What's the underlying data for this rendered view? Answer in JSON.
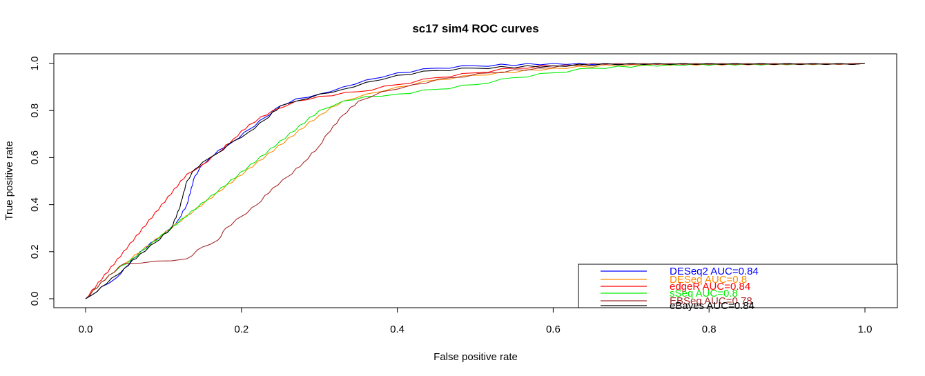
{
  "chart_data": {
    "type": "line",
    "title": "sc17 sim4 ROC curves",
    "xlabel": "False positive rate",
    "ylabel": "True positive rate",
    "xlim": [
      0,
      1
    ],
    "ylim": [
      0,
      1
    ],
    "x_ticks": [
      "0.0",
      "0.2",
      "0.4",
      "0.6",
      "0.8",
      "1.0"
    ],
    "y_ticks": [
      "0.0",
      "0.2",
      "0.4",
      "0.6",
      "0.8",
      "1.0"
    ],
    "grid": false,
    "legend_position": "bottom-right",
    "series": [
      {
        "name": "DESeq2",
        "legend": "DESeq2 AUC=0.84",
        "color": "#0000ff",
        "points": [
          [
            0,
            0
          ],
          [
            0.01,
            0.02
          ],
          [
            0.02,
            0.05
          ],
          [
            0.04,
            0.09
          ],
          [
            0.05,
            0.13
          ],
          [
            0.07,
            0.2
          ],
          [
            0.09,
            0.25
          ],
          [
            0.11,
            0.3
          ],
          [
            0.12,
            0.34
          ],
          [
            0.13,
            0.4
          ],
          [
            0.14,
            0.52
          ],
          [
            0.15,
            0.57
          ],
          [
            0.16,
            0.6
          ],
          [
            0.17,
            0.63
          ],
          [
            0.19,
            0.67
          ],
          [
            0.21,
            0.72
          ],
          [
            0.23,
            0.77
          ],
          [
            0.25,
            0.82
          ],
          [
            0.27,
            0.85
          ],
          [
            0.3,
            0.87
          ],
          [
            0.33,
            0.9
          ],
          [
            0.36,
            0.93
          ],
          [
            0.4,
            0.96
          ],
          [
            0.45,
            0.98
          ],
          [
            0.5,
            0.99
          ],
          [
            0.6,
            1.0
          ],
          [
            1.0,
            1.0
          ]
        ]
      },
      {
        "name": "DESeq",
        "legend": "DESeq AUC=0.8",
        "color": "#ff8c00",
        "points": [
          [
            0,
            0
          ],
          [
            0.03,
            0.1
          ],
          [
            0.05,
            0.15
          ],
          [
            0.3,
            0.78
          ],
          [
            0.33,
            0.84
          ],
          [
            0.36,
            0.87
          ],
          [
            0.4,
            0.9
          ],
          [
            0.45,
            0.93
          ],
          [
            0.5,
            0.95
          ],
          [
            0.6,
            0.98
          ],
          [
            0.7,
            0.995
          ],
          [
            1.0,
            1.0
          ]
        ]
      },
      {
        "name": "edgeR",
        "legend": "edgeR AUC=0.84",
        "color": "#ff0000",
        "points": [
          [
            0,
            0
          ],
          [
            0.13,
            0.53
          ],
          [
            0.15,
            0.57
          ],
          [
            0.17,
            0.62
          ],
          [
            0.19,
            0.68
          ],
          [
            0.21,
            0.74
          ],
          [
            0.24,
            0.8
          ],
          [
            0.27,
            0.84
          ],
          [
            0.3,
            0.86
          ],
          [
            0.35,
            0.88
          ],
          [
            0.4,
            0.91
          ],
          [
            0.45,
            0.94
          ],
          [
            0.5,
            0.96
          ],
          [
            0.55,
            0.98
          ],
          [
            0.6,
            0.99
          ],
          [
            0.7,
            1.0
          ],
          [
            1.0,
            1.0
          ]
        ]
      },
      {
        "name": "sSeq",
        "legend": "sSeq AUC=0.8",
        "color": "#00ee00",
        "points": [
          [
            0,
            0
          ],
          [
            0.03,
            0.1
          ],
          [
            0.06,
            0.17
          ],
          [
            0.3,
            0.8
          ],
          [
            0.33,
            0.84
          ],
          [
            0.36,
            0.86
          ],
          [
            0.4,
            0.87
          ],
          [
            0.45,
            0.89
          ],
          [
            0.5,
            0.91
          ],
          [
            0.55,
            0.94
          ],
          [
            0.6,
            0.96
          ],
          [
            0.65,
            0.98
          ],
          [
            0.75,
            0.995
          ],
          [
            1.0,
            1.0
          ]
        ]
      },
      {
        "name": "EBSeq",
        "legend": "EBSeq AUC=0.78",
        "color": "#a52a2a",
        "points": [
          [
            0,
            0
          ],
          [
            0.03,
            0.1
          ],
          [
            0.05,
            0.15
          ],
          [
            0.09,
            0.16
          ],
          [
            0.13,
            0.17
          ],
          [
            0.15,
            0.22
          ],
          [
            0.17,
            0.25
          ],
          [
            0.18,
            0.3
          ],
          [
            0.2,
            0.35
          ],
          [
            0.22,
            0.4
          ],
          [
            0.24,
            0.47
          ],
          [
            0.26,
            0.52
          ],
          [
            0.28,
            0.58
          ],
          [
            0.3,
            0.65
          ],
          [
            0.31,
            0.7
          ],
          [
            0.33,
            0.78
          ],
          [
            0.35,
            0.84
          ],
          [
            0.38,
            0.88
          ],
          [
            0.42,
            0.91
          ],
          [
            0.47,
            0.94
          ],
          [
            0.52,
            0.96
          ],
          [
            0.58,
            0.98
          ],
          [
            0.65,
            1.0
          ],
          [
            1.0,
            1.0
          ]
        ]
      },
      {
        "name": "eBayes",
        "legend": "eBayes AUC=0.84",
        "color": "#000000",
        "points": [
          [
            0,
            0
          ],
          [
            0.01,
            0.02
          ],
          [
            0.02,
            0.05
          ],
          [
            0.04,
            0.1
          ],
          [
            0.05,
            0.13
          ],
          [
            0.07,
            0.19
          ],
          [
            0.09,
            0.24
          ],
          [
            0.11,
            0.3
          ],
          [
            0.12,
            0.38
          ],
          [
            0.13,
            0.5
          ],
          [
            0.14,
            0.55
          ],
          [
            0.15,
            0.58
          ],
          [
            0.16,
            0.6
          ],
          [
            0.17,
            0.62
          ],
          [
            0.19,
            0.67
          ],
          [
            0.21,
            0.71
          ],
          [
            0.23,
            0.76
          ],
          [
            0.25,
            0.82
          ],
          [
            0.27,
            0.84
          ],
          [
            0.3,
            0.87
          ],
          [
            0.33,
            0.89
          ],
          [
            0.36,
            0.92
          ],
          [
            0.4,
            0.95
          ],
          [
            0.45,
            0.97
          ],
          [
            0.5,
            0.98
          ],
          [
            0.6,
            0.99
          ],
          [
            0.7,
            1.0
          ],
          [
            1.0,
            1.0
          ]
        ]
      }
    ]
  }
}
